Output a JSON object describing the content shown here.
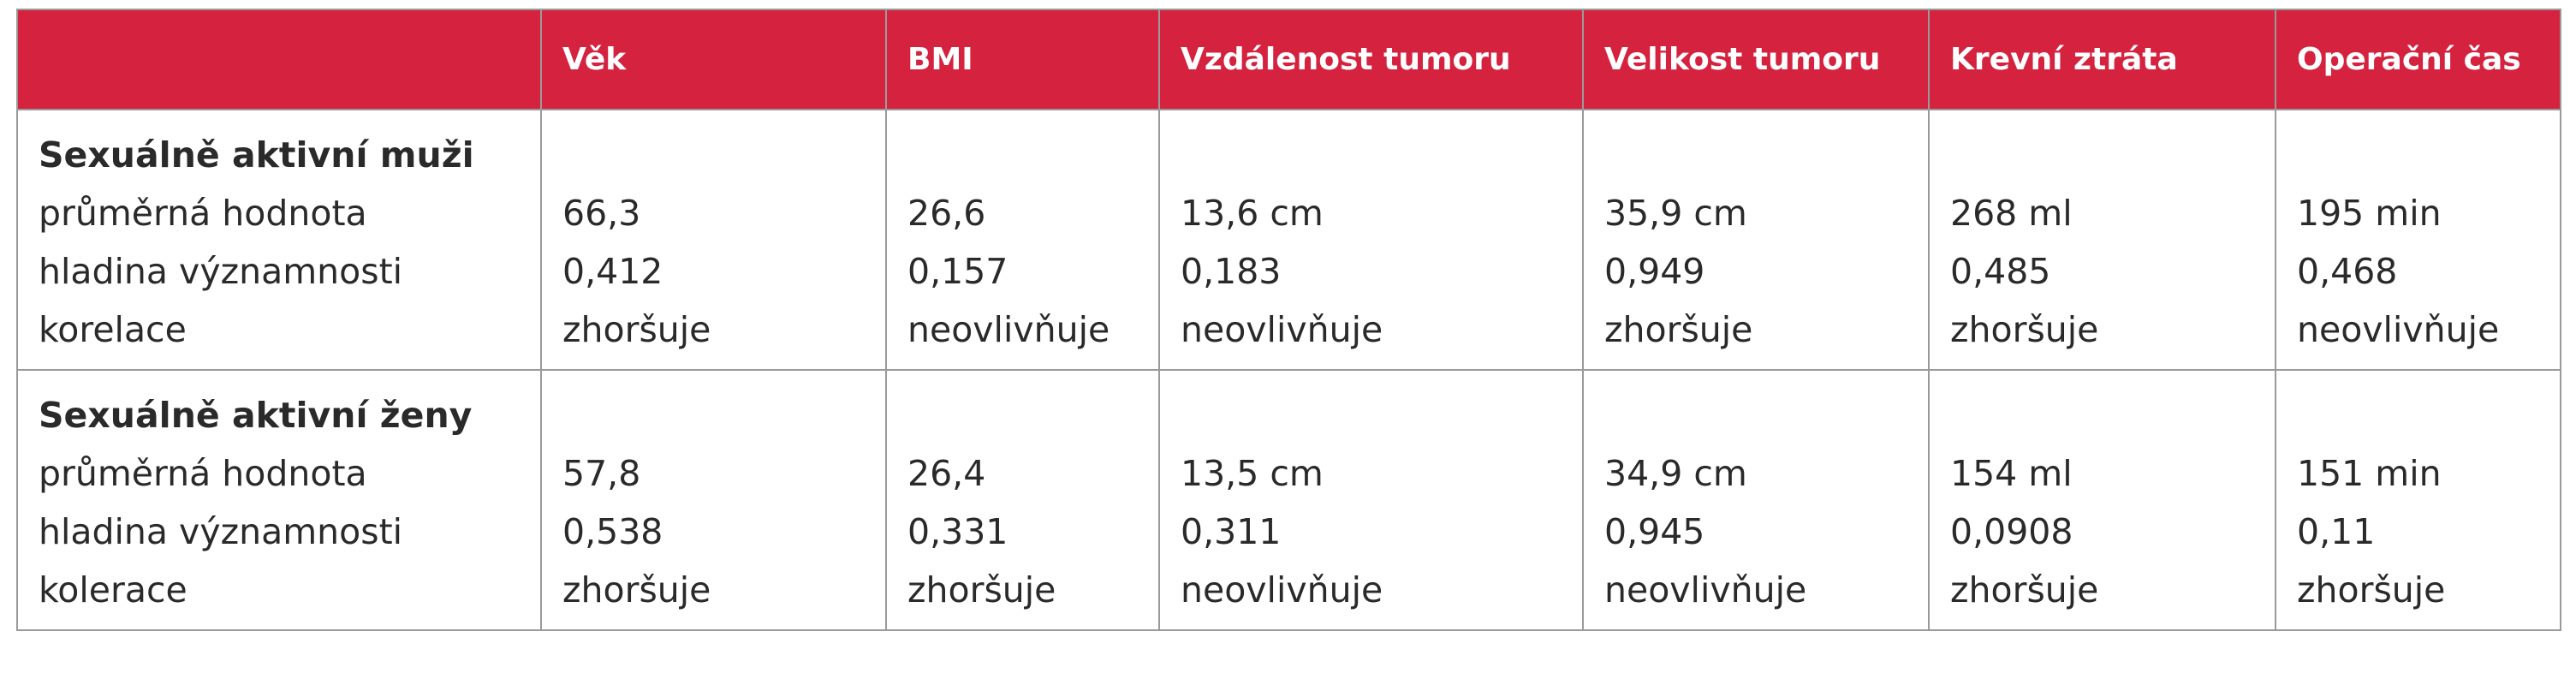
{
  "table": {
    "columns": [
      "Věk",
      "BMI",
      "Vzdálenost tumoru",
      "Velikost tumoru",
      "Krevní ztráta",
      "Operační čas"
    ],
    "groups": [
      {
        "title": "Sexuálně aktivní muži",
        "labels": [
          "průměrná hodnota",
          "hladina významnosti",
          "korelace"
        ],
        "cells": [
          [
            "66,3",
            "0,412",
            "zhoršuje"
          ],
          [
            "26,6",
            "0,157",
            "neovlivňuje"
          ],
          [
            "13,6 cm",
            "0,183",
            "neovlivňuje"
          ],
          [
            "35,9 cm",
            "0,949",
            "zhoršuje"
          ],
          [
            "268 ml",
            "0,485",
            "zhoršuje"
          ],
          [
            "195 min",
            "0,468",
            "neovlivňuje"
          ]
        ]
      },
      {
        "title": "Sexuálně aktivní ženy",
        "labels": [
          "průměrná hodnota",
          "hladina významnosti",
          "kolerace"
        ],
        "cells": [
          [
            "57,8",
            "0,538",
            "zhoršuje"
          ],
          [
            "26,4",
            "0,331",
            "zhoršuje"
          ],
          [
            "13,5 cm",
            "0,311",
            "neovlivňuje"
          ],
          [
            "34,9 cm",
            "0,945",
            "neovlivňuje"
          ],
          [
            "154 ml",
            "0,0908",
            "zhoršuje"
          ],
          [
            "151 min",
            "0,11",
            "zhoršuje"
          ]
        ]
      }
    ]
  }
}
